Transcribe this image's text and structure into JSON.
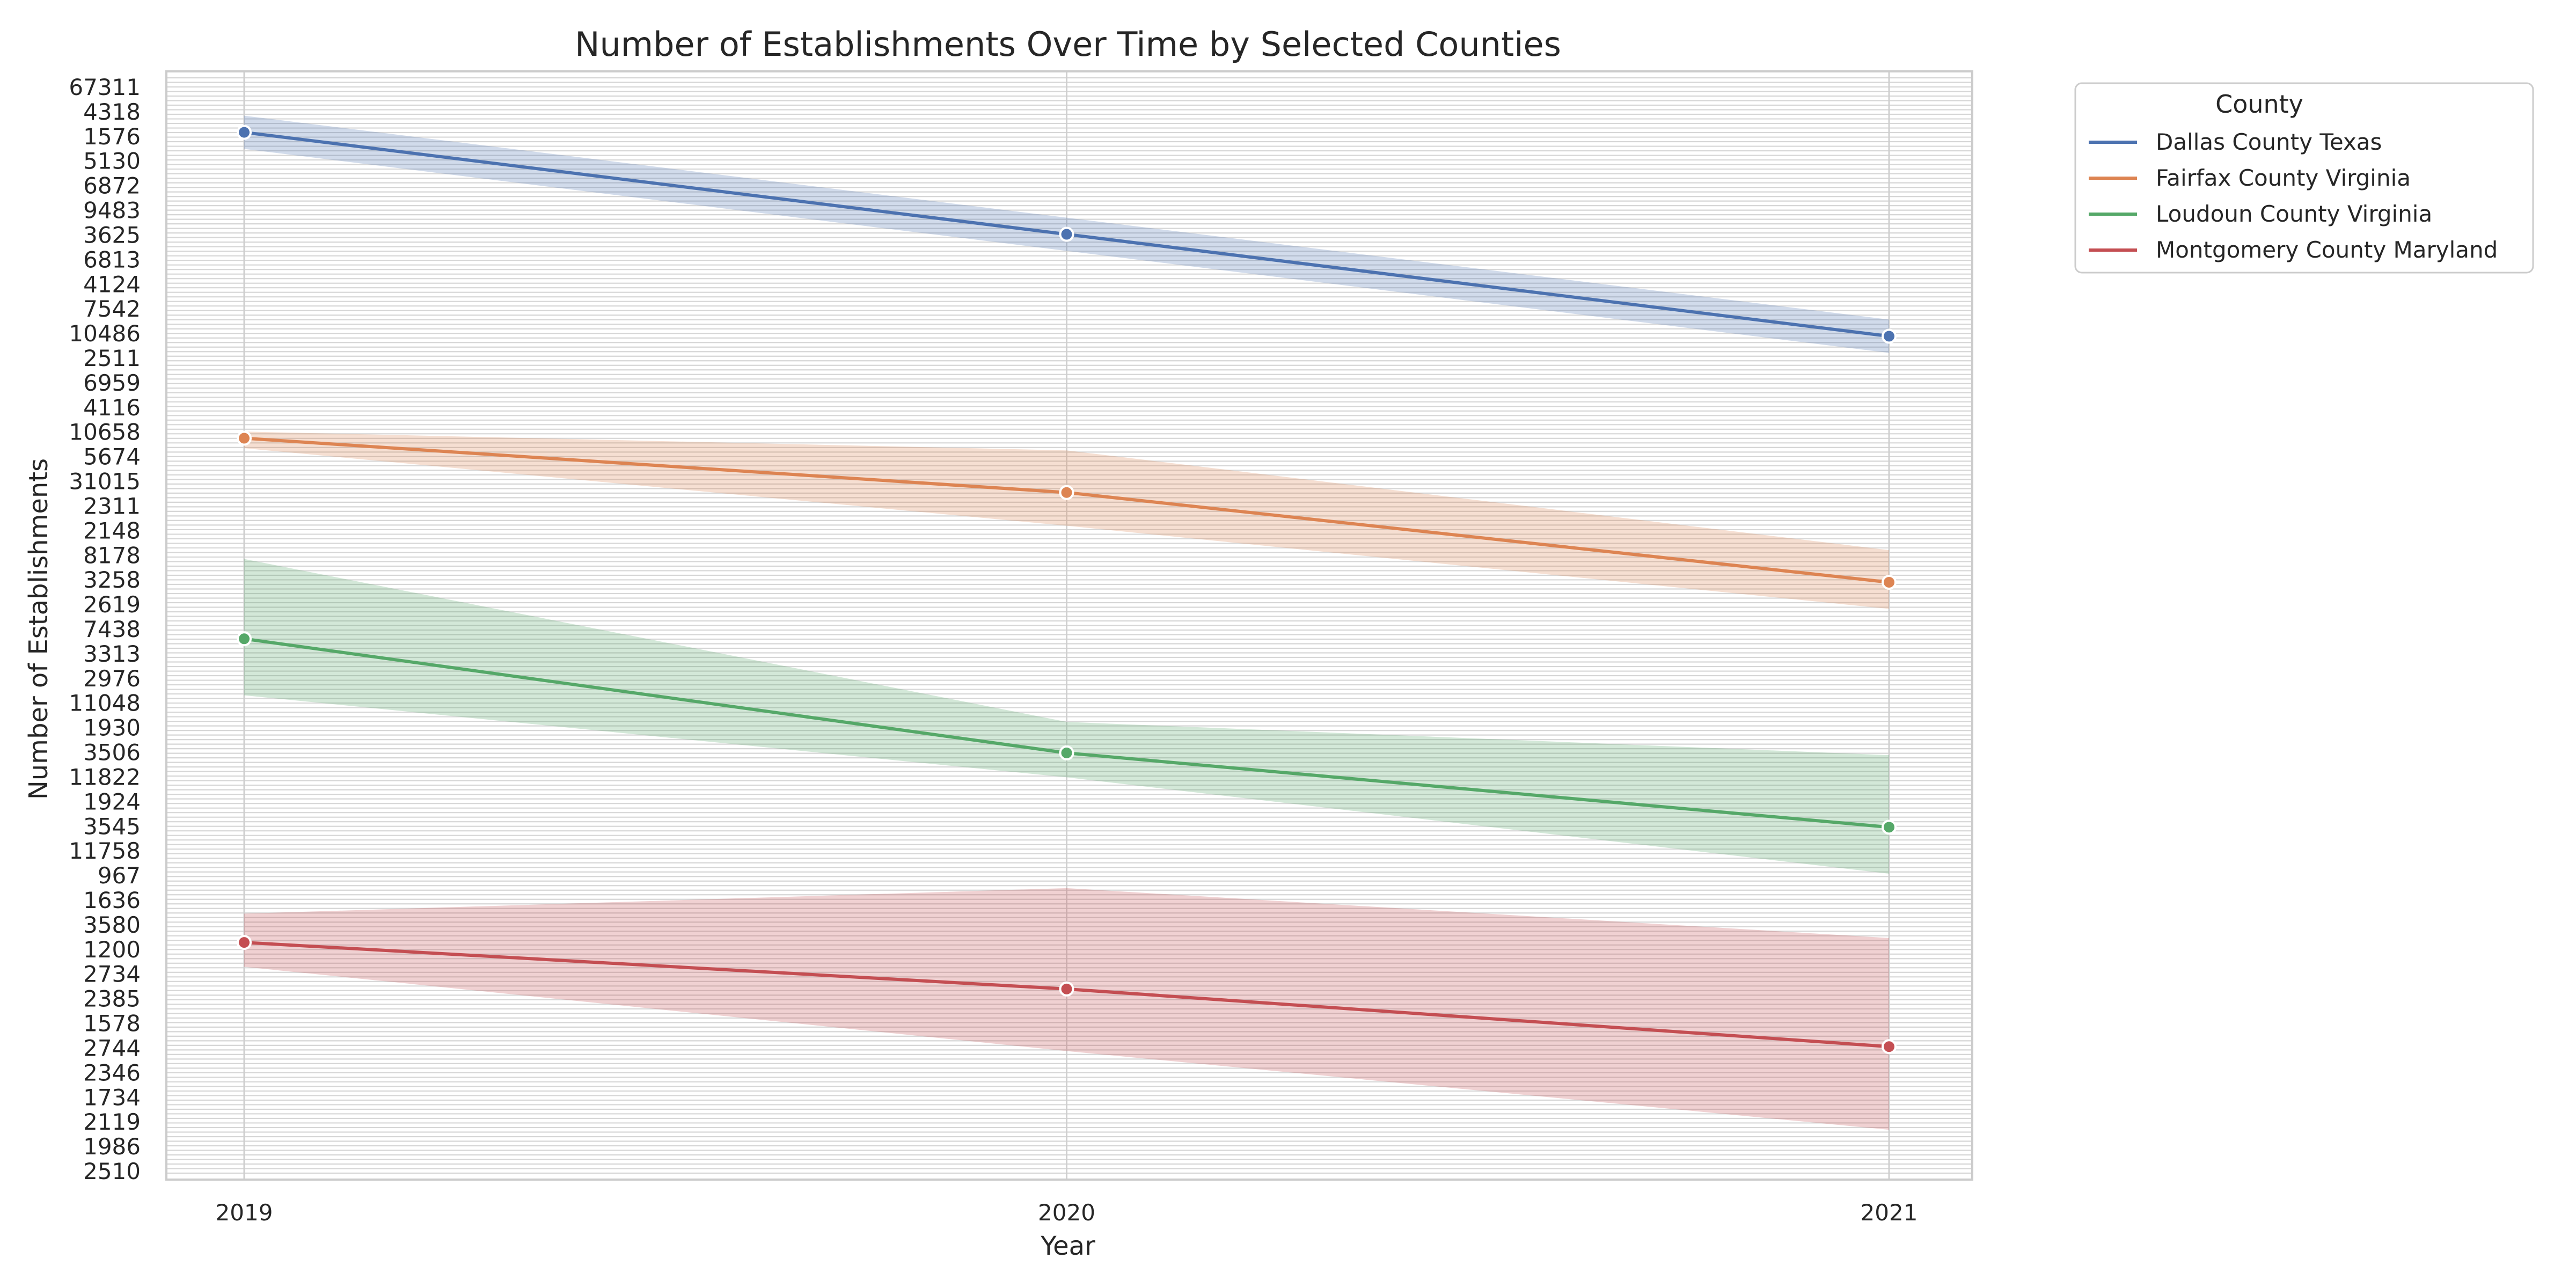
{
  "chart_data": {
    "type": "line",
    "title": "Number of Establishments Over Time by Selected Counties",
    "xlabel": "Year",
    "ylabel": "Number of Establishments",
    "x": [
      "2019",
      "2020",
      "2021"
    ],
    "y_category_labels": [
      "67311",
      "4318",
      "1576",
      "5130",
      "6872",
      "9483",
      "3625",
      "6813",
      "4124",
      "7542",
      "10486",
      "2511",
      "6959",
      "4116",
      "10658",
      "5674",
      "31015",
      "2311",
      "2148",
      "8178",
      "3258",
      "2619",
      "7438",
      "3313",
      "2976",
      "11048",
      "1930",
      "3506",
      "11822",
      "1924",
      "3545",
      "11758",
      "967",
      "1636",
      "3580",
      "1200",
      "2734",
      "2385",
      "1578",
      "2744",
      "2346",
      "1734",
      "2119",
      "1986",
      "2510"
    ],
    "series": [
      {
        "name": "Dallas County Texas",
        "color": "#4c72b0",
        "y_position": [
          0.945,
          0.853,
          0.761
        ],
        "band": [
          [
            0.96,
            0.93
          ],
          [
            0.868,
            0.838
          ],
          [
            0.776,
            0.746
          ]
        ]
      },
      {
        "name": "Fairfax County Virginia",
        "color": "#dd8452",
        "y_position": [
          0.669,
          0.62,
          0.539
        ],
        "band": [
          [
            0.675,
            0.66
          ],
          [
            0.658,
            0.59
          ],
          [
            0.568,
            0.515
          ]
        ]
      },
      {
        "name": "Loudoun County Virginia",
        "color": "#55a868",
        "y_position": [
          0.488,
          0.385,
          0.318
        ],
        "band": [
          [
            0.56,
            0.437
          ],
          [
            0.413,
            0.363
          ],
          [
            0.383,
            0.276
          ]
        ]
      },
      {
        "name": "Montgomery County Maryland",
        "color": "#c44e52",
        "y_position": [
          0.214,
          0.172,
          0.12
        ],
        "band": [
          [
            0.24,
            0.192
          ],
          [
            0.263,
            0.116
          ],
          [
            0.218,
            0.045
          ]
        ]
      }
    ],
    "grid": true,
    "legend": {
      "title": "County",
      "placement": "outside-top-right"
    }
  }
}
